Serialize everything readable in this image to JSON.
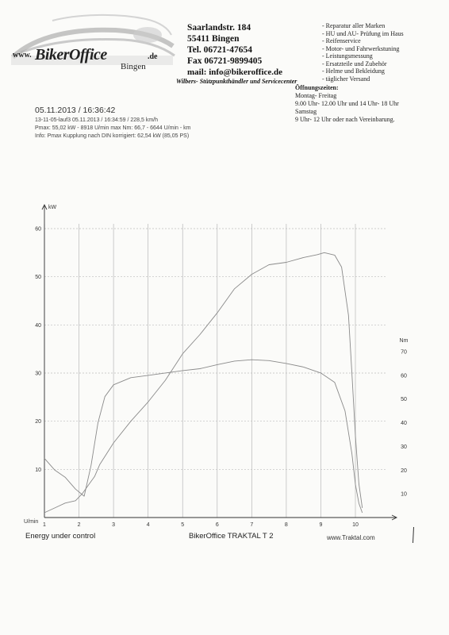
{
  "header": {
    "logo_www": "www.",
    "logo_brand": "BikerOffice",
    "logo_tld": ".de",
    "logo_city": "Bingen",
    "address": [
      "Saarlandstr. 184",
      "55411 Bingen",
      "Tel. 06721-47654",
      "Fax 06721-9899405",
      "mail: info@bikeroffice.de"
    ],
    "dealer_line": "Wilbers- Stützpunkthändler und Servicecenter",
    "services": [
      "- Reparatur aller Marken",
      "- HU und AU- Prüfung im Haus",
      "- Reifenservice",
      "- Motor- und Fahrwerkstuning",
      "- Leistungsmessung",
      "- Ersatzteile und Zubehör",
      "- Helme und Bekleidung",
      "- täglicher Versand"
    ],
    "hours": {
      "title": "Öffnungszeiten:",
      "lines": [
        "Montag- Freitag",
        "9.00 Uhr- 12.00 Uhr und 14 Uhr- 18 Uhr",
        "Samstag",
        "9 Uhr- 12 Uhr oder nach Vereinbarung."
      ]
    }
  },
  "run": {
    "date": "05.11.2013  /  16:36:42",
    "lines": [
      "13-11-05-lauf3    05.11.2013   /  16:34:59  / 228,5 km/h",
      "Pmax: 55,02 kW - 8918 U/min    max Nm: 66,7 - 6644 U/min    - km",
      "Info: Pmax Kupplung nach DIN korrigiert: 62,54 kW (85,05 PS)"
    ]
  },
  "footer": {
    "left": "Energy  under control",
    "middle": "BikerOffice TRAKTAL  T 2",
    "right": "www.Traktal.com"
  },
  "chart_data": {
    "type": "line",
    "title": "",
    "xlabel": "U/min",
    "ylabel": "kW",
    "y2label": "Nm",
    "xlim": [
      1,
      10.9
    ],
    "ylim": [
      0,
      65
    ],
    "y2lim": [
      0,
      85
    ],
    "x_ticks": [
      1,
      2,
      3,
      4,
      5,
      6,
      7,
      8,
      9,
      10
    ],
    "y_ticks": [
      10,
      20,
      30,
      40,
      50,
      60
    ],
    "y2_ticks": [
      10,
      20,
      30,
      40,
      50,
      60,
      70
    ],
    "grid": true,
    "series": [
      {
        "axis": "left",
        "color": "#8a8a8a",
        "x": [
          1.0,
          1.3,
          1.6,
          1.9,
          2.1,
          2.3,
          2.45,
          2.6,
          3.0,
          3.5,
          4.0,
          4.5,
          5.0,
          5.5,
          6.0,
          6.5,
          7.0,
          7.5,
          8.0,
          8.5,
          8.9,
          9.1,
          9.4,
          9.6,
          9.8,
          9.9,
          10.0,
          10.1,
          10.2
        ],
        "values": [
          1,
          2,
          3,
          3.5,
          5,
          7,
          8.5,
          11,
          15.5,
          20,
          24,
          28.5,
          34,
          38,
          42.5,
          47.5,
          50.5,
          52.5,
          53,
          54,
          54.6,
          55.0,
          54.5,
          52,
          42,
          30,
          17,
          7,
          2
        ]
      },
      {
        "axis": "right",
        "color": "#8a8a8a",
        "x": [
          1.0,
          1.3,
          1.6,
          1.9,
          2.15,
          2.35,
          2.55,
          2.75,
          3.0,
          3.5,
          4.0,
          4.5,
          5.0,
          5.5,
          6.0,
          6.5,
          7.0,
          7.5,
          8.0,
          8.5,
          9.0,
          9.4,
          9.7,
          9.9,
          10.0,
          10.1,
          10.2
        ],
        "values": [
          25,
          20,
          17,
          12,
          9,
          22,
          40,
          51,
          56,
          59,
          60,
          61,
          62,
          62.8,
          64.5,
          66,
          66.6,
          66.2,
          65,
          63.5,
          61,
          57,
          45,
          27,
          14,
          6,
          2
        ]
      }
    ]
  }
}
